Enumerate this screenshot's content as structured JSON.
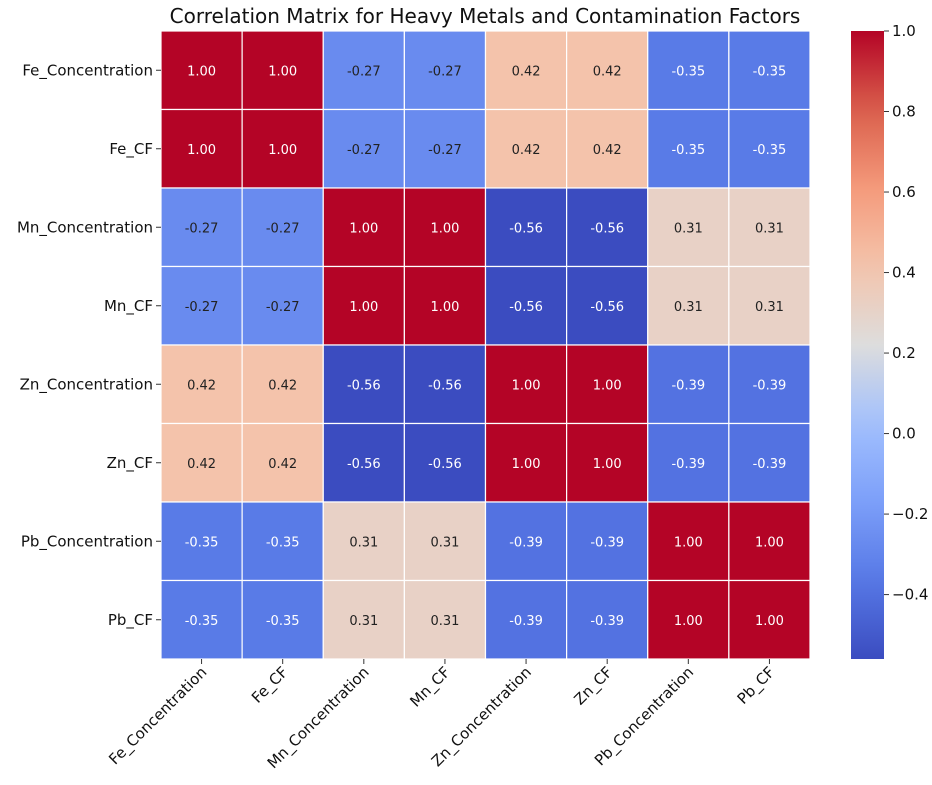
{
  "chart_data": {
    "type": "heatmap",
    "title": "Correlation Matrix for Heavy Metals and Contamination Factors",
    "row_labels": [
      "Fe_Concentration",
      "Fe_CF",
      "Mn_Concentration",
      "Mn_CF",
      "Zn_Concentration",
      "Zn_CF",
      "Pb_Concentration",
      "Pb_CF"
    ],
    "col_labels": [
      "Fe_Concentration",
      "Fe_CF",
      "Mn_Concentration",
      "Mn_CF",
      "Zn_Concentration",
      "Zn_CF",
      "Pb_Concentration",
      "Pb_CF"
    ],
    "values": [
      [
        1.0,
        1.0,
        -0.27,
        -0.27,
        0.42,
        0.42,
        -0.35,
        -0.35
      ],
      [
        1.0,
        1.0,
        -0.27,
        -0.27,
        0.42,
        0.42,
        -0.35,
        -0.35
      ],
      [
        -0.27,
        -0.27,
        1.0,
        1.0,
        -0.56,
        -0.56,
        0.31,
        0.31
      ],
      [
        -0.27,
        -0.27,
        1.0,
        1.0,
        -0.56,
        -0.56,
        0.31,
        0.31
      ],
      [
        0.42,
        0.42,
        -0.56,
        -0.56,
        1.0,
        1.0,
        -0.39,
        -0.39
      ],
      [
        0.42,
        0.42,
        -0.56,
        -0.56,
        1.0,
        1.0,
        -0.39,
        -0.39
      ],
      [
        -0.35,
        -0.35,
        0.31,
        0.31,
        -0.39,
        -0.39,
        1.0,
        1.0
      ],
      [
        -0.35,
        -0.35,
        0.31,
        0.31,
        -0.39,
        -0.39,
        1.0,
        1.0
      ]
    ],
    "value_format": "2 decimals",
    "colormap": "coolwarm",
    "vmin": -0.56,
    "vmax": 1.0,
    "colorbar": {
      "ticks": [
        1.0,
        0.8,
        0.6,
        0.4,
        0.2,
        0.0,
        -0.2,
        -0.4
      ],
      "tick_labels": [
        "1.0",
        "0.8",
        "0.6",
        "0.4",
        "0.2",
        "0.0",
        "−0.2",
        "−0.4"
      ],
      "placement": "right"
    },
    "grid": true
  }
}
